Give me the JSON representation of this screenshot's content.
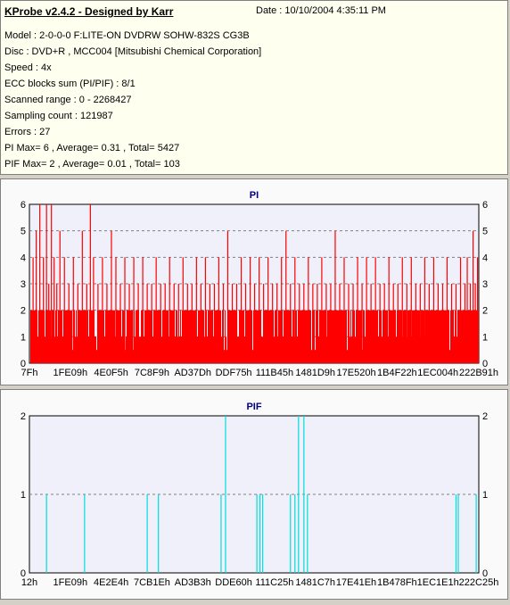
{
  "header": {
    "title": "KProbe v2.4.2 - Designed by Karr",
    "date": "Date : 10/10/2004 4:35:11 PM",
    "lines": [
      "Model : 2-0-0-0 F:LITE-ON DVDRW SOHW-832S  CG3B",
      "Disc : DVD+R , MCC004 [Mitsubishi Chemical Corporation]",
      "Speed : 4x",
      "ECC blocks sum (PI/PIF) : 8/1",
      "Scanned range : 0 - 2268427",
      "Sampling count : 121987",
      "Errors : 27",
      "PI Max= 6 , Average= 0.31 , Total= 5427",
      "PIF Max= 2 , Average= 0.01 , Total= 103"
    ]
  },
  "colors": {
    "pi_bar": "#ff0000",
    "pif_bar": "#00dede",
    "plot_bg": "#f0f0fa",
    "grid": "#808080",
    "title": "#000080"
  },
  "chart_data": [
    {
      "type": "bar",
      "title": "PI",
      "ylim": [
        0,
        6
      ],
      "yticks": [
        0,
        1,
        2,
        3,
        4,
        5,
        6
      ],
      "xticks": [
        "7Fh",
        "1FE09h",
        "4E0F5h",
        "7C8F9h",
        "AD37Dh",
        "DDF75h",
        "111B45h",
        "1481D9h",
        "17E520h",
        "1B4F22h",
        "1EC004h",
        "222B91h"
      ],
      "x_range": [
        127,
        2268427
      ],
      "base_level": 2,
      "grid": true,
      "spikes": [
        {
          "x": 0.005,
          "v": 4
        },
        {
          "x": 0.012,
          "v": 5
        },
        {
          "x": 0.02,
          "v": 6
        },
        {
          "x": 0.028,
          "v": 4
        },
        {
          "x": 0.035,
          "v": 6
        },
        {
          "x": 0.04,
          "v": 3
        },
        {
          "x": 0.046,
          "v": 6
        },
        {
          "x": 0.052,
          "v": 4
        },
        {
          "x": 0.058,
          "v": 3
        },
        {
          "x": 0.065,
          "v": 5
        },
        {
          "x": 0.075,
          "v": 4
        },
        {
          "x": 0.085,
          "v": 3
        },
        {
          "x": 0.095,
          "v": 4
        },
        {
          "x": 0.105,
          "v": 3
        },
        {
          "x": 0.115,
          "v": 5
        },
        {
          "x": 0.125,
          "v": 3
        },
        {
          "x": 0.133,
          "v": 6
        },
        {
          "x": 0.14,
          "v": 4
        },
        {
          "x": 0.15,
          "v": 3
        },
        {
          "x": 0.16,
          "v": 4
        },
        {
          "x": 0.17,
          "v": 3
        },
        {
          "x": 0.18,
          "v": 5
        },
        {
          "x": 0.19,
          "v": 4
        },
        {
          "x": 0.2,
          "v": 3
        },
        {
          "x": 0.21,
          "v": 4
        },
        {
          "x": 0.22,
          "v": 3
        },
        {
          "x": 0.23,
          "v": 4
        },
        {
          "x": 0.24,
          "v": 3
        },
        {
          "x": 0.25,
          "v": 4
        },
        {
          "x": 0.26,
          "v": 3
        },
        {
          "x": 0.27,
          "v": 3
        },
        {
          "x": 0.28,
          "v": 4
        },
        {
          "x": 0.29,
          "v": 3
        },
        {
          "x": 0.3,
          "v": 3
        },
        {
          "x": 0.31,
          "v": 4
        },
        {
          "x": 0.32,
          "v": 3
        },
        {
          "x": 0.33,
          "v": 3
        },
        {
          "x": 0.34,
          "v": 4
        },
        {
          "x": 0.35,
          "v": 3
        },
        {
          "x": 0.36,
          "v": 3
        },
        {
          "x": 0.37,
          "v": 4
        },
        {
          "x": 0.38,
          "v": 3
        },
        {
          "x": 0.39,
          "v": 4
        },
        {
          "x": 0.4,
          "v": 3
        },
        {
          "x": 0.41,
          "v": 3
        },
        {
          "x": 0.42,
          "v": 4
        },
        {
          "x": 0.43,
          "v": 3
        },
        {
          "x": 0.44,
          "v": 5
        },
        {
          "x": 0.45,
          "v": 3
        },
        {
          "x": 0.46,
          "v": 3
        },
        {
          "x": 0.47,
          "v": 4
        },
        {
          "x": 0.48,
          "v": 3
        },
        {
          "x": 0.49,
          "v": 4
        },
        {
          "x": 0.5,
          "v": 3
        },
        {
          "x": 0.51,
          "v": 4
        },
        {
          "x": 0.52,
          "v": 3
        },
        {
          "x": 0.53,
          "v": 4
        },
        {
          "x": 0.54,
          "v": 3
        },
        {
          "x": 0.55,
          "v": 3
        },
        {
          "x": 0.56,
          "v": 4
        },
        {
          "x": 0.57,
          "v": 5
        },
        {
          "x": 0.58,
          "v": 3
        },
        {
          "x": 0.59,
          "v": 4
        },
        {
          "x": 0.6,
          "v": 3
        },
        {
          "x": 0.61,
          "v": 3
        },
        {
          "x": 0.62,
          "v": 4
        },
        {
          "x": 0.63,
          "v": 3
        },
        {
          "x": 0.64,
          "v": 3
        },
        {
          "x": 0.65,
          "v": 4
        },
        {
          "x": 0.66,
          "v": 3
        },
        {
          "x": 0.67,
          "v": 3
        },
        {
          "x": 0.68,
          "v": 5
        },
        {
          "x": 0.69,
          "v": 3
        },
        {
          "x": 0.7,
          "v": 4
        },
        {
          "x": 0.71,
          "v": 3
        },
        {
          "x": 0.72,
          "v": 3
        },
        {
          "x": 0.73,
          "v": 4
        },
        {
          "x": 0.74,
          "v": 3
        },
        {
          "x": 0.75,
          "v": 4
        },
        {
          "x": 0.76,
          "v": 3
        },
        {
          "x": 0.77,
          "v": 4
        },
        {
          "x": 0.78,
          "v": 3
        },
        {
          "x": 0.79,
          "v": 3
        },
        {
          "x": 0.8,
          "v": 4
        },
        {
          "x": 0.81,
          "v": 3
        },
        {
          "x": 0.82,
          "v": 3
        },
        {
          "x": 0.83,
          "v": 4
        },
        {
          "x": 0.84,
          "v": 3
        },
        {
          "x": 0.85,
          "v": 4
        },
        {
          "x": 0.86,
          "v": 3
        },
        {
          "x": 0.87,
          "v": 3
        },
        {
          "x": 0.88,
          "v": 4
        },
        {
          "x": 0.89,
          "v": 3
        },
        {
          "x": 0.9,
          "v": 4
        },
        {
          "x": 0.91,
          "v": 3
        },
        {
          "x": 0.92,
          "v": 3
        },
        {
          "x": 0.93,
          "v": 4
        },
        {
          "x": 0.94,
          "v": 3
        },
        {
          "x": 0.95,
          "v": 3
        },
        {
          "x": 0.96,
          "v": 4
        },
        {
          "x": 0.97,
          "v": 3
        },
        {
          "x": 0.975,
          "v": 4
        },
        {
          "x": 0.982,
          "v": 3
        },
        {
          "x": 0.988,
          "v": 5
        },
        {
          "x": 0.993,
          "v": 3
        },
        {
          "x": 0.998,
          "v": 4
        }
      ]
    },
    {
      "type": "bar",
      "title": "PIF",
      "ylim": [
        0,
        2
      ],
      "yticks": [
        0,
        1,
        2
      ],
      "xticks": [
        "12h",
        "1FE09h",
        "4E2E4h",
        "7CB1Eh",
        "AD3B3h",
        "DDE60h",
        "111C25h",
        "1481C7h",
        "17E41Eh",
        "1B478Fh",
        "1EC1E1h",
        "222C25h"
      ],
      "x_range": [
        18,
        2268427
      ],
      "grid": true,
      "spikes": [
        {
          "x": 0.035,
          "v": 1
        },
        {
          "x": 0.12,
          "v": 1
        },
        {
          "x": 0.26,
          "v": 1
        },
        {
          "x": 0.285,
          "v": 1
        },
        {
          "x": 0.425,
          "v": 1
        },
        {
          "x": 0.435,
          "v": 2
        },
        {
          "x": 0.505,
          "v": 1
        },
        {
          "x": 0.512,
          "v": 1
        },
        {
          "x": 0.518,
          "v": 1
        },
        {
          "x": 0.58,
          "v": 1
        },
        {
          "x": 0.59,
          "v": 1
        },
        {
          "x": 0.598,
          "v": 2
        },
        {
          "x": 0.61,
          "v": 2
        },
        {
          "x": 0.618,
          "v": 1
        },
        {
          "x": 0.95,
          "v": 1
        },
        {
          "x": 0.955,
          "v": 1
        },
        {
          "x": 0.995,
          "v": 1
        }
      ]
    }
  ]
}
